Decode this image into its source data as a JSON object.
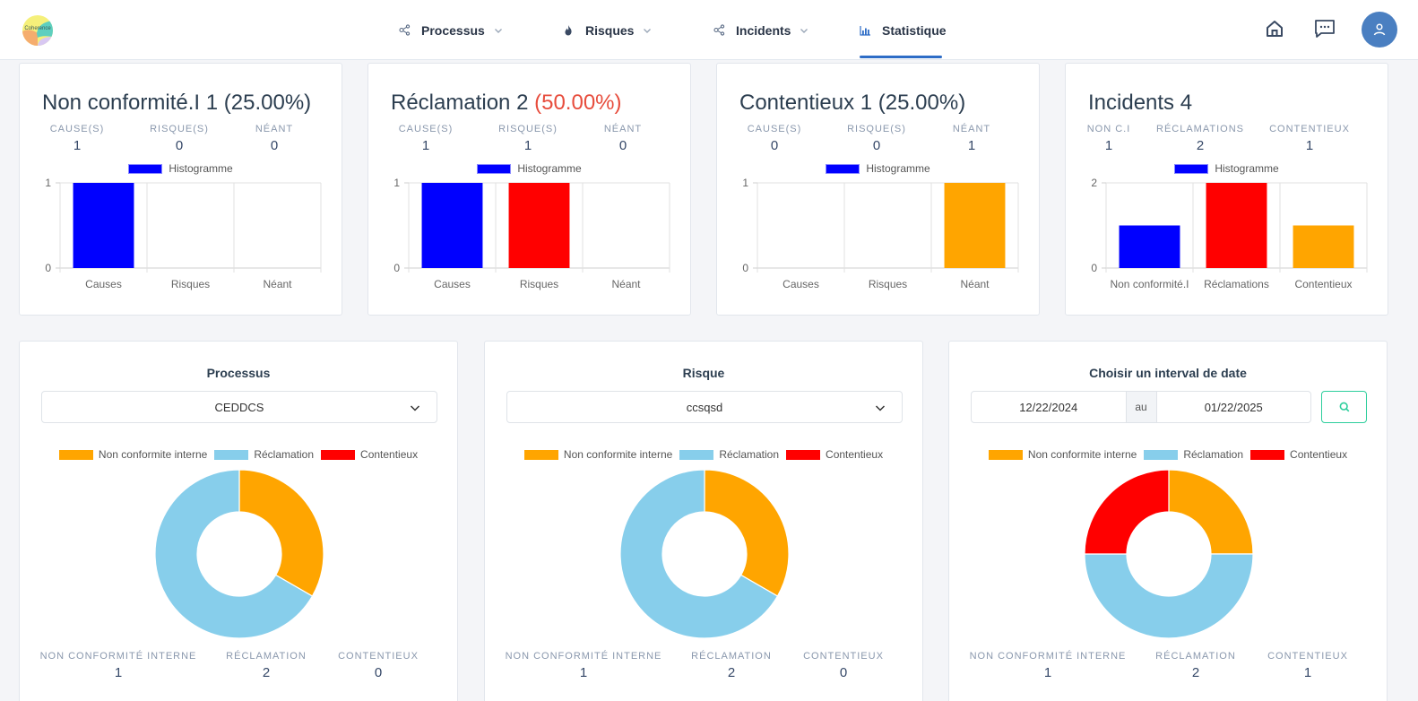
{
  "header": {
    "logo_text": "Coherence",
    "nav": [
      {
        "label": "Processus",
        "icon": "share-nodes-icon",
        "dropdown": true,
        "active": false
      },
      {
        "label": "Risques",
        "icon": "fire-icon",
        "dropdown": true,
        "active": false
      },
      {
        "label": "Incidents",
        "icon": "share-nodes-icon",
        "dropdown": true,
        "active": false
      },
      {
        "label": "Statistique",
        "icon": "bar-chart-icon",
        "dropdown": false,
        "active": true
      }
    ],
    "actions": [
      {
        "name": "home-icon"
      },
      {
        "name": "chat-icon"
      },
      {
        "name": "user-icon"
      }
    ]
  },
  "stat_cards": [
    {
      "title": "Non conformité.I",
      "count": "1",
      "percent": "(25.00%)",
      "percent_highlight": false,
      "kpis": [
        {
          "label": "Cause(s)",
          "value": "1"
        },
        {
          "label": "Risque(s)",
          "value": "0"
        },
        {
          "label": "Néant",
          "value": "0"
        }
      ],
      "legend": "Histogramme"
    },
    {
      "title": "Réclamation",
      "count": "2",
      "percent": "(50.00%)",
      "percent_highlight": true,
      "kpis": [
        {
          "label": "Cause(s)",
          "value": "1"
        },
        {
          "label": "Risque(s)",
          "value": "1"
        },
        {
          "label": "Néant",
          "value": "0"
        }
      ],
      "legend": "Histogramme"
    },
    {
      "title": "Contentieux",
      "count": "1",
      "percent": "(25.00%)",
      "percent_highlight": false,
      "kpis": [
        {
          "label": "Cause(s)",
          "value": "0"
        },
        {
          "label": "Risque(s)",
          "value": "0"
        },
        {
          "label": "Néant",
          "value": "1"
        }
      ],
      "legend": "Histogramme"
    },
    {
      "title": "Incidents",
      "count": "4",
      "percent": "",
      "percent_highlight": false,
      "kpis": [
        {
          "label": "Non C.I",
          "value": "1"
        },
        {
          "label": "Réclamations",
          "value": "2"
        },
        {
          "label": "Contentieux",
          "value": "1"
        }
      ],
      "legend": "Histogramme"
    }
  ],
  "donut_cards": [
    {
      "title": "Processus",
      "select_value": "CEDDCS",
      "kpis": [
        {
          "label": "Non conformité interne",
          "value": "1"
        },
        {
          "label": "Réclamation",
          "value": "2"
        },
        {
          "label": "Contentieux",
          "value": "0"
        }
      ]
    },
    {
      "title": "Risque",
      "select_value": "ccsqsd",
      "kpis": [
        {
          "label": "Non conformité interne",
          "value": "1"
        },
        {
          "label": "Réclamation",
          "value": "2"
        },
        {
          "label": "Contentieux",
          "value": "0"
        }
      ]
    },
    {
      "title": "Choisir un interval de date",
      "date_from": "12/22/2024",
      "date_sep": "au",
      "date_to": "01/22/2025",
      "kpis": [
        {
          "label": "Non conformité interne",
          "value": "1"
        },
        {
          "label": "Réclamation",
          "value": "2"
        },
        {
          "label": "Contentieux",
          "value": "1"
        }
      ]
    }
  ],
  "colors": {
    "blue": "#0000ff",
    "red": "#ff0000",
    "orange": "#ffa500",
    "skyblue": "#87ceeb",
    "accent": "#2d6cc6",
    "search_border": "#2dce9c"
  },
  "chart_data": [
    {
      "type": "bar",
      "title": "Non conformité.I",
      "categories": [
        "Causes",
        "Risques",
        "Néant"
      ],
      "values": [
        1,
        0,
        0
      ],
      "bar_colors": [
        "#0000ff",
        "#ff0000",
        "#ffa500"
      ],
      "legend": [
        "Histogramme"
      ],
      "yticks": [
        "0",
        "1"
      ],
      "ylim": [
        0,
        1
      ],
      "grid": true
    },
    {
      "type": "bar",
      "title": "Réclamation",
      "categories": [
        "Causes",
        "Risques",
        "Néant"
      ],
      "values": [
        1,
        1,
        0
      ],
      "bar_colors": [
        "#0000ff",
        "#ff0000",
        "#ffa500"
      ],
      "legend": [
        "Histogramme"
      ],
      "yticks": [
        "0",
        "1"
      ],
      "ylim": [
        0,
        1
      ],
      "grid": true
    },
    {
      "type": "bar",
      "title": "Contentieux",
      "categories": [
        "Causes",
        "Risques",
        "Néant"
      ],
      "values": [
        0,
        0,
        1
      ],
      "bar_colors": [
        "#0000ff",
        "#ff0000",
        "#ffa500"
      ],
      "legend": [
        "Histogramme"
      ],
      "yticks": [
        "0",
        "1"
      ],
      "ylim": [
        0,
        1
      ],
      "grid": true
    },
    {
      "type": "bar",
      "title": "Incidents",
      "categories": [
        "Non conformité.I",
        "Réclamations",
        "Contentieux"
      ],
      "values": [
        1,
        2,
        1
      ],
      "bar_colors": [
        "#0000ff",
        "#ff0000",
        "#ffa500"
      ],
      "legend": [
        "Histogramme"
      ],
      "yticks": [
        "0",
        "2"
      ],
      "ylim": [
        0,
        2
      ],
      "grid": true
    },
    {
      "type": "pie",
      "title": "Processus",
      "labels": [
        "Non conformite interne",
        "Réclamation",
        "Contentieux"
      ],
      "values": [
        1,
        2,
        0
      ],
      "colors": [
        "#ffa500",
        "#87ceeb",
        "#ff0000"
      ],
      "legend_position": "top"
    },
    {
      "type": "pie",
      "title": "Risque",
      "labels": [
        "Non conformite interne",
        "Réclamation",
        "Contentieux"
      ],
      "values": [
        1,
        2,
        0
      ],
      "colors": [
        "#ffa500",
        "#87ceeb",
        "#ff0000"
      ],
      "legend_position": "top"
    },
    {
      "type": "pie",
      "title": "Choisir un interval de date",
      "labels": [
        "Non conformite interne",
        "Réclamation",
        "Contentieux"
      ],
      "values": [
        1,
        2,
        1
      ],
      "colors": [
        "#ffa500",
        "#87ceeb",
        "#ff0000"
      ],
      "legend_position": "top"
    }
  ]
}
